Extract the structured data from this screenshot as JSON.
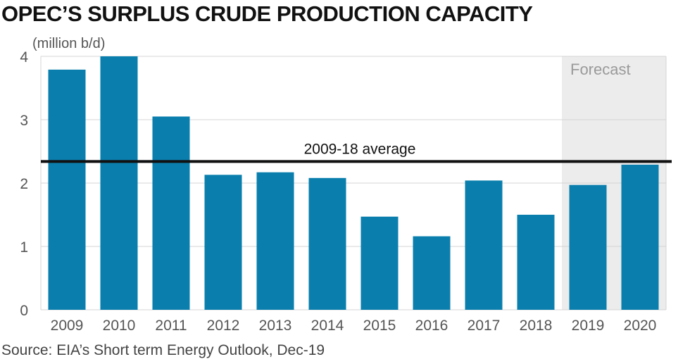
{
  "header": {
    "title": "OPEC’S SURPLUS CRUDE PRODUCTION CAPACITY"
  },
  "footer": {
    "source": "Source: EIA’s Short term Energy Outlook, Dec-19"
  },
  "chart_data": {
    "type": "bar",
    "title": "OPEC’S SURPLUS CRUDE PRODUCTION CAPACITY",
    "unit_label": "(million b/d)",
    "categories": [
      "2009",
      "2010",
      "2011",
      "2012",
      "2013",
      "2014",
      "2015",
      "2016",
      "2017",
      "2018",
      "2019",
      "2020"
    ],
    "values": [
      3.79,
      4.0,
      3.05,
      2.13,
      2.17,
      2.08,
      1.47,
      1.16,
      2.04,
      1.5,
      1.97,
      2.29
    ],
    "ylim": [
      0,
      4
    ],
    "yticks": [
      "0",
      "1",
      "2",
      "3",
      "4"
    ],
    "grid": true,
    "bar_color": "#0a7fae",
    "average": {
      "label": "2009-18 average",
      "value": 2.34,
      "color": "#111111"
    },
    "forecast": {
      "label": "Forecast",
      "categories": [
        "2019",
        "2020"
      ],
      "shade_color": "#ececec"
    }
  }
}
